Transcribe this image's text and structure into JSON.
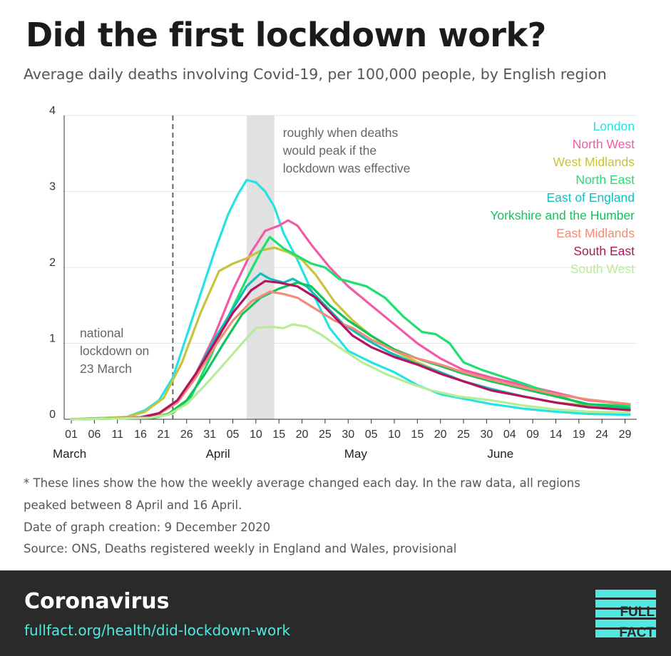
{
  "header": {
    "title": "Did the first lockdown work?",
    "subtitle": "Average daily deaths involving Covid-19, per 100,000 people, by English region"
  },
  "chart_data": {
    "type": "line",
    "title": "Did the first lockdown work?",
    "subtitle": "Average daily deaths involving Covid-19, per 100,000 people, by English region",
    "xlabel": "",
    "ylabel": "",
    "x_start": "2020-03-01",
    "x_end": "2020-06-30",
    "ylim": [
      0,
      4
    ],
    "yticks": [
      "0",
      "1",
      "2",
      "3",
      "4"
    ],
    "xticks": [
      {
        "date": "2020-03-01",
        "label": "01"
      },
      {
        "date": "2020-03-06",
        "label": "06"
      },
      {
        "date": "2020-03-11",
        "label": "11"
      },
      {
        "date": "2020-03-16",
        "label": "16"
      },
      {
        "date": "2020-03-21",
        "label": "21"
      },
      {
        "date": "2020-03-26",
        "label": "26"
      },
      {
        "date": "2020-03-31",
        "label": "31"
      },
      {
        "date": "2020-04-05",
        "label": "05"
      },
      {
        "date": "2020-04-10",
        "label": "10"
      },
      {
        "date": "2020-04-15",
        "label": "15"
      },
      {
        "date": "2020-04-20",
        "label": "20"
      },
      {
        "date": "2020-04-25",
        "label": "25"
      },
      {
        "date": "2020-04-30",
        "label": "30"
      },
      {
        "date": "2020-05-05",
        "label": "05"
      },
      {
        "date": "2020-05-10",
        "label": "10"
      },
      {
        "date": "2020-05-15",
        "label": "15"
      },
      {
        "date": "2020-05-20",
        "label": "20"
      },
      {
        "date": "2020-05-25",
        "label": "25"
      },
      {
        "date": "2020-05-30",
        "label": "30"
      },
      {
        "date": "2020-06-04",
        "label": "04"
      },
      {
        "date": "2020-06-09",
        "label": "09"
      },
      {
        "date": "2020-06-14",
        "label": "14"
      },
      {
        "date": "2020-06-19",
        "label": "19"
      },
      {
        "date": "2020-06-24",
        "label": "24"
      },
      {
        "date": "2020-06-29",
        "label": "29"
      }
    ],
    "months": [
      {
        "date": "2020-03-01",
        "label": "March"
      },
      {
        "date": "2020-04-01",
        "label": "April"
      },
      {
        "date": "2020-05-01",
        "label": "May"
      },
      {
        "date": "2020-06-01",
        "label": "June"
      }
    ],
    "grid": true,
    "legend": "top-right",
    "lockdown_line": {
      "date": "2020-03-23",
      "label_lines": [
        "national",
        "lockdown on",
        "23 March"
      ]
    },
    "shaded_band": {
      "from": "2020-04-08",
      "to": "2020-04-14",
      "label_lines": [
        "roughly when deaths",
        "would peak if the",
        "lockdown was effective"
      ]
    },
    "series": [
      {
        "name": "London",
        "color": "#26e3e3",
        "points": [
          [
            "2020-03-01",
            0
          ],
          [
            "2020-03-13",
            0.03
          ],
          [
            "2020-03-17",
            0.12
          ],
          [
            "2020-03-20",
            0.25
          ],
          [
            "2020-03-23",
            0.55
          ],
          [
            "2020-03-26",
            1.1
          ],
          [
            "2020-03-29",
            1.65
          ],
          [
            "2020-04-01",
            2.2
          ],
          [
            "2020-04-04",
            2.7
          ],
          [
            "2020-04-06",
            2.95
          ],
          [
            "2020-04-08",
            3.15
          ],
          [
            "2020-04-10",
            3.12
          ],
          [
            "2020-04-12",
            3.0
          ],
          [
            "2020-04-14",
            2.8
          ],
          [
            "2020-04-16",
            2.45
          ],
          [
            "2020-04-19",
            2.1
          ],
          [
            "2020-04-22",
            1.7
          ],
          [
            "2020-04-26",
            1.2
          ],
          [
            "2020-04-30",
            0.9
          ],
          [
            "2020-05-05",
            0.75
          ],
          [
            "2020-05-10",
            0.62
          ],
          [
            "2020-05-15",
            0.45
          ],
          [
            "2020-05-20",
            0.33
          ],
          [
            "2020-05-25",
            0.27
          ],
          [
            "2020-05-31",
            0.2
          ],
          [
            "2020-06-07",
            0.14
          ],
          [
            "2020-06-14",
            0.1
          ],
          [
            "2020-06-21",
            0.07
          ],
          [
            "2020-06-30",
            0.06
          ]
        ]
      },
      {
        "name": "North West",
        "color": "#f25aa5",
        "points": [
          [
            "2020-03-01",
            0
          ],
          [
            "2020-03-16",
            0.03
          ],
          [
            "2020-03-20",
            0.08
          ],
          [
            "2020-03-24",
            0.25
          ],
          [
            "2020-03-28",
            0.6
          ],
          [
            "2020-04-01",
            1.1
          ],
          [
            "2020-04-05",
            1.7
          ],
          [
            "2020-04-09",
            2.2
          ],
          [
            "2020-04-12",
            2.48
          ],
          [
            "2020-04-15",
            2.55
          ],
          [
            "2020-04-17",
            2.62
          ],
          [
            "2020-04-19",
            2.55
          ],
          [
            "2020-04-22",
            2.3
          ],
          [
            "2020-04-26",
            2.0
          ],
          [
            "2020-04-30",
            1.75
          ],
          [
            "2020-05-05",
            1.5
          ],
          [
            "2020-05-10",
            1.25
          ],
          [
            "2020-05-15",
            1.0
          ],
          [
            "2020-05-20",
            0.8
          ],
          [
            "2020-05-25",
            0.65
          ],
          [
            "2020-05-31",
            0.55
          ],
          [
            "2020-06-07",
            0.45
          ],
          [
            "2020-06-14",
            0.35
          ],
          [
            "2020-06-21",
            0.25
          ],
          [
            "2020-06-30",
            0.2
          ]
        ]
      },
      {
        "name": "West Midlands",
        "color": "#c8c23c",
        "points": [
          [
            "2020-03-01",
            0
          ],
          [
            "2020-03-13",
            0.03
          ],
          [
            "2020-03-17",
            0.1
          ],
          [
            "2020-03-21",
            0.28
          ],
          [
            "2020-03-25",
            0.75
          ],
          [
            "2020-03-29",
            1.4
          ],
          [
            "2020-04-02",
            1.95
          ],
          [
            "2020-04-05",
            2.05
          ],
          [
            "2020-04-08",
            2.12
          ],
          [
            "2020-04-11",
            2.22
          ],
          [
            "2020-04-14",
            2.26
          ],
          [
            "2020-04-17",
            2.2
          ],
          [
            "2020-04-20",
            2.1
          ],
          [
            "2020-04-23",
            1.9
          ],
          [
            "2020-04-27",
            1.55
          ],
          [
            "2020-05-01",
            1.3
          ],
          [
            "2020-05-05",
            1.1
          ],
          [
            "2020-05-10",
            0.9
          ],
          [
            "2020-05-15",
            0.75
          ],
          [
            "2020-05-20",
            0.62
          ],
          [
            "2020-05-25",
            0.5
          ],
          [
            "2020-05-31",
            0.4
          ],
          [
            "2020-06-07",
            0.3
          ],
          [
            "2020-06-14",
            0.22
          ],
          [
            "2020-06-21",
            0.18
          ],
          [
            "2020-06-30",
            0.15
          ]
        ]
      },
      {
        "name": "North East",
        "color": "#1ee06e",
        "points": [
          [
            "2020-03-01",
            0
          ],
          [
            "2020-03-19",
            0.02
          ],
          [
            "2020-03-23",
            0.08
          ],
          [
            "2020-03-27",
            0.3
          ],
          [
            "2020-03-31",
            0.8
          ],
          [
            "2020-04-04",
            1.35
          ],
          [
            "2020-04-08",
            1.85
          ],
          [
            "2020-04-11",
            2.2
          ],
          [
            "2020-04-13",
            2.4
          ],
          [
            "2020-04-16",
            2.25
          ],
          [
            "2020-04-19",
            2.15
          ],
          [
            "2020-04-22",
            2.05
          ],
          [
            "2020-04-25",
            2.0
          ],
          [
            "2020-04-28",
            1.85
          ],
          [
            "2020-05-01",
            1.8
          ],
          [
            "2020-05-04",
            1.75
          ],
          [
            "2020-05-08",
            1.6
          ],
          [
            "2020-05-12",
            1.35
          ],
          [
            "2020-05-16",
            1.15
          ],
          [
            "2020-05-19",
            1.12
          ],
          [
            "2020-05-22",
            1.0
          ],
          [
            "2020-05-25",
            0.75
          ],
          [
            "2020-05-29",
            0.65
          ],
          [
            "2020-06-03",
            0.55
          ],
          [
            "2020-06-08",
            0.45
          ],
          [
            "2020-06-14",
            0.32
          ],
          [
            "2020-06-20",
            0.2
          ],
          [
            "2020-06-30",
            0.18
          ]
        ]
      },
      {
        "name": "East of England",
        "color": "#14bdbd",
        "points": [
          [
            "2020-03-01",
            0
          ],
          [
            "2020-03-16",
            0.02
          ],
          [
            "2020-03-20",
            0.08
          ],
          [
            "2020-03-24",
            0.25
          ],
          [
            "2020-03-28",
            0.6
          ],
          [
            "2020-04-01",
            1.05
          ],
          [
            "2020-04-05",
            1.45
          ],
          [
            "2020-04-08",
            1.75
          ],
          [
            "2020-04-11",
            1.92
          ],
          [
            "2020-04-13",
            1.85
          ],
          [
            "2020-04-16",
            1.8
          ],
          [
            "2020-04-18",
            1.85
          ],
          [
            "2020-04-21",
            1.75
          ],
          [
            "2020-04-25",
            1.5
          ],
          [
            "2020-04-29",
            1.25
          ],
          [
            "2020-05-04",
            1.05
          ],
          [
            "2020-05-09",
            0.88
          ],
          [
            "2020-05-14",
            0.75
          ],
          [
            "2020-05-20",
            0.62
          ],
          [
            "2020-05-25",
            0.5
          ],
          [
            "2020-05-31",
            0.4
          ],
          [
            "2020-06-07",
            0.3
          ],
          [
            "2020-06-14",
            0.22
          ],
          [
            "2020-06-21",
            0.16
          ],
          [
            "2020-06-30",
            0.13
          ]
        ]
      },
      {
        "name": "Yorkshire and the Humber",
        "color": "#13c45c",
        "points": [
          [
            "2020-03-01",
            0
          ],
          [
            "2020-03-18",
            0.02
          ],
          [
            "2020-03-22",
            0.07
          ],
          [
            "2020-03-26",
            0.25
          ],
          [
            "2020-03-30",
            0.6
          ],
          [
            "2020-04-03",
            1.0
          ],
          [
            "2020-04-07",
            1.38
          ],
          [
            "2020-04-11",
            1.6
          ],
          [
            "2020-04-15",
            1.72
          ],
          [
            "2020-04-19",
            1.8
          ],
          [
            "2020-04-22",
            1.75
          ],
          [
            "2020-04-26",
            1.5
          ],
          [
            "2020-04-30",
            1.3
          ],
          [
            "2020-05-05",
            1.1
          ],
          [
            "2020-05-10",
            0.92
          ],
          [
            "2020-05-15",
            0.8
          ],
          [
            "2020-05-20",
            0.7
          ],
          [
            "2020-05-25",
            0.6
          ],
          [
            "2020-05-31",
            0.5
          ],
          [
            "2020-06-07",
            0.4
          ],
          [
            "2020-06-14",
            0.3
          ],
          [
            "2020-06-21",
            0.2
          ],
          [
            "2020-06-30",
            0.15
          ]
        ]
      },
      {
        "name": "East Midlands",
        "color": "#f28b78",
        "points": [
          [
            "2020-03-01",
            0
          ],
          [
            "2020-03-16",
            0.02
          ],
          [
            "2020-03-20",
            0.07
          ],
          [
            "2020-03-24",
            0.22
          ],
          [
            "2020-03-28",
            0.55
          ],
          [
            "2020-04-01",
            0.95
          ],
          [
            "2020-04-05",
            1.3
          ],
          [
            "2020-04-09",
            1.55
          ],
          [
            "2020-04-13",
            1.68
          ],
          [
            "2020-04-16",
            1.65
          ],
          [
            "2020-04-19",
            1.6
          ],
          [
            "2020-04-23",
            1.45
          ],
          [
            "2020-04-27",
            1.3
          ],
          [
            "2020-05-01",
            1.2
          ],
          [
            "2020-05-05",
            1.05
          ],
          [
            "2020-05-10",
            0.9
          ],
          [
            "2020-05-15",
            0.8
          ],
          [
            "2020-05-20",
            0.72
          ],
          [
            "2020-05-25",
            0.62
          ],
          [
            "2020-05-31",
            0.52
          ],
          [
            "2020-06-07",
            0.42
          ],
          [
            "2020-06-14",
            0.33
          ],
          [
            "2020-06-21",
            0.26
          ],
          [
            "2020-06-30",
            0.2
          ]
        ]
      },
      {
        "name": "South East",
        "color": "#b5135f",
        "points": [
          [
            "2020-03-01",
            0
          ],
          [
            "2020-03-16",
            0.02
          ],
          [
            "2020-03-20",
            0.08
          ],
          [
            "2020-03-24",
            0.25
          ],
          [
            "2020-03-28",
            0.6
          ],
          [
            "2020-04-01",
            1.0
          ],
          [
            "2020-04-05",
            1.4
          ],
          [
            "2020-04-09",
            1.7
          ],
          [
            "2020-04-12",
            1.82
          ],
          [
            "2020-04-15",
            1.8
          ],
          [
            "2020-04-19",
            1.75
          ],
          [
            "2020-04-23",
            1.6
          ],
          [
            "2020-04-27",
            1.35
          ],
          [
            "2020-05-01",
            1.1
          ],
          [
            "2020-05-05",
            0.95
          ],
          [
            "2020-05-10",
            0.82
          ],
          [
            "2020-05-15",
            0.72
          ],
          [
            "2020-05-20",
            0.6
          ],
          [
            "2020-05-25",
            0.5
          ],
          [
            "2020-05-31",
            0.38
          ],
          [
            "2020-06-07",
            0.3
          ],
          [
            "2020-06-14",
            0.22
          ],
          [
            "2020-06-21",
            0.16
          ],
          [
            "2020-06-30",
            0.12
          ]
        ]
      },
      {
        "name": "South West",
        "color": "#b9ec96",
        "points": [
          [
            "2020-03-01",
            0
          ],
          [
            "2020-03-18",
            0.02
          ],
          [
            "2020-03-22",
            0.06
          ],
          [
            "2020-03-26",
            0.2
          ],
          [
            "2020-03-30",
            0.45
          ],
          [
            "2020-04-03",
            0.72
          ],
          [
            "2020-04-07",
            1.0
          ],
          [
            "2020-04-10",
            1.2
          ],
          [
            "2020-04-13",
            1.22
          ],
          [
            "2020-04-16",
            1.2
          ],
          [
            "2020-04-18",
            1.25
          ],
          [
            "2020-04-21",
            1.22
          ],
          [
            "2020-04-24",
            1.12
          ],
          [
            "2020-04-28",
            0.95
          ],
          [
            "2020-05-03",
            0.75
          ],
          [
            "2020-05-08",
            0.6
          ],
          [
            "2020-05-13",
            0.48
          ],
          [
            "2020-05-18",
            0.38
          ],
          [
            "2020-05-24",
            0.3
          ],
          [
            "2020-05-31",
            0.25
          ],
          [
            "2020-06-07",
            0.18
          ],
          [
            "2020-06-14",
            0.13
          ],
          [
            "2020-06-21",
            0.1
          ],
          [
            "2020-06-30",
            0.09
          ]
        ]
      }
    ]
  },
  "footnotes": {
    "note_line_1": "* These lines show the how the weekly average changed each day. In the raw data, all regions",
    "note_line_2": "peaked between 8 April and 16 April.",
    "created": "Date of graph creation: 9 December 2020",
    "source": "Source: ONS, Deaths registered weekly in England and Wales, provisional"
  },
  "banner": {
    "topic": "Coronavirus",
    "link": "fullfact.org/health/did-lockdown-work",
    "logo_top": "FULL",
    "logo_bottom": "FACT",
    "background_color": "#2a2a2a",
    "accent_color": "#52e8e0"
  }
}
